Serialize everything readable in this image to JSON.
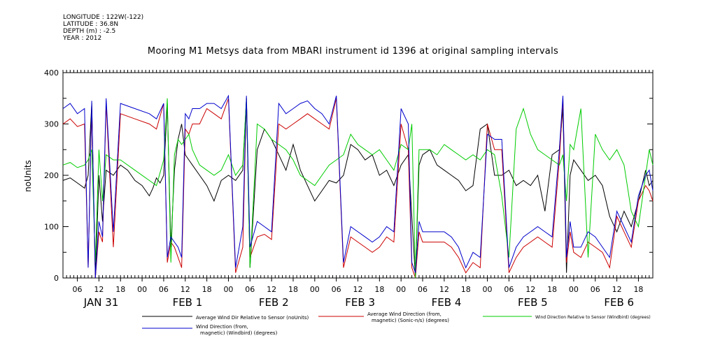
{
  "header": {
    "longitude": "LONGITUDE : 122W(-122)",
    "latitude": "LATITUDE : 36.8N",
    "depth": "DEPTH (m) : -2.5",
    "year": "YEAR : 2012"
  },
  "chart_data": {
    "type": "line",
    "title": "Mooring M1 Metsys data from MBARI instrument id 1396 at original sampling intervals",
    "ylabel": "noUnits",
    "xlabel": "",
    "ylim": [
      0,
      400
    ],
    "xlim": [
      2,
      166
    ],
    "x_unit": "hours since 2012-01-31 00:00",
    "y_ticks": [
      0,
      100,
      200,
      300,
      400
    ],
    "y_tick_labels": [
      "0",
      "100",
      "200",
      "300",
      "400"
    ],
    "x_ticks": [
      6,
      12,
      18,
      24,
      30,
      36,
      42,
      48,
      54,
      60,
      66,
      72,
      78,
      84,
      90,
      96,
      102,
      108,
      114,
      120,
      126,
      132,
      138,
      144,
      150,
      156,
      162
    ],
    "x_tick_labels": [
      "06",
      "12",
      "18",
      "00",
      "06",
      "12",
      "18",
      "00",
      "06",
      "12",
      "18",
      "00",
      "06",
      "12",
      "18",
      "00",
      "06",
      "12",
      "18",
      "00",
      "06",
      "12",
      "18",
      "00",
      "06",
      "12",
      "18"
    ],
    "day_labels": [
      {
        "x": 6,
        "label": "JAN 31"
      },
      {
        "x": 30,
        "label": "FEB  1"
      },
      {
        "x": 54,
        "label": "FEB  2"
      },
      {
        "x": 78,
        "label": "FEB  3"
      },
      {
        "x": 102,
        "label": "FEB  4"
      },
      {
        "x": 126,
        "label": "FEB  5"
      },
      {
        "x": 150,
        "label": "FEB  6"
      }
    ],
    "grid": false,
    "legend_position": "bottom",
    "series": [
      {
        "name": "Average Wind Dir Relative to Sensor (noUnits)",
        "color": "#000000",
        "x": [
          2,
          4,
          6,
          8,
          9,
          10,
          11,
          12,
          13,
          14,
          16,
          18,
          20,
          22,
          24,
          26,
          27,
          28,
          29,
          30,
          31,
          32,
          33,
          34,
          35,
          36,
          37,
          38,
          40,
          42,
          44,
          46,
          48,
          50,
          52,
          53,
          54,
          56,
          58,
          60,
          62,
          64,
          66,
          68,
          70,
          72,
          74,
          76,
          78,
          80,
          82,
          84,
          86,
          88,
          90,
          92,
          94,
          96,
          98,
          99,
          100,
          101,
          102,
          104,
          106,
          108,
          110,
          112,
          114,
          116,
          118,
          120,
          122,
          124,
          126,
          128,
          130,
          132,
          134,
          136,
          138,
          140,
          141,
          142,
          143,
          144,
          146,
          148,
          150,
          152,
          154,
          156,
          158,
          160,
          162,
          164,
          165,
          166
        ],
        "y": [
          190,
          195,
          185,
          175,
          200,
          340,
          0,
          200,
          110,
          210,
          200,
          220,
          210,
          190,
          180,
          160,
          175,
          195,
          185,
          200,
          340,
          60,
          210,
          270,
          300,
          240,
          230,
          220,
          200,
          180,
          150,
          190,
          200,
          190,
          210,
          350,
          20,
          250,
          290,
          270,
          240,
          210,
          260,
          210,
          180,
          150,
          170,
          190,
          185,
          200,
          260,
          250,
          230,
          240,
          200,
          210,
          180,
          220,
          240,
          120,
          0,
          220,
          240,
          250,
          220,
          210,
          200,
          190,
          170,
          180,
          290,
          300,
          200,
          200,
          210,
          180,
          190,
          180,
          200,
          130,
          240,
          250,
          330,
          10,
          200,
          230,
          210,
          190,
          200,
          180,
          120,
          90,
          130,
          100,
          150,
          210,
          180,
          190
        ]
      },
      {
        "name": "Average Wind Direction (from, magnetic) (Sonic-n/s) (degrees)",
        "color": "#cc0000",
        "x": [
          2,
          4,
          6,
          8,
          9,
          10,
          11,
          12,
          13,
          14,
          16,
          18,
          22,
          26,
          28,
          30,
          31,
          32,
          33,
          34,
          35,
          36,
          37,
          38,
          40,
          42,
          44,
          46,
          48,
          50,
          52,
          53,
          54,
          56,
          58,
          60,
          62,
          64,
          66,
          68,
          70,
          72,
          74,
          76,
          78,
          80,
          82,
          84,
          86,
          88,
          90,
          92,
          94,
          96,
          98,
          99,
          100,
          101,
          102,
          104,
          106,
          108,
          110,
          112,
          114,
          116,
          118,
          120,
          122,
          124,
          126,
          128,
          130,
          132,
          134,
          136,
          138,
          140,
          141,
          142,
          143,
          144,
          146,
          148,
          150,
          152,
          154,
          156,
          158,
          160,
          162,
          164,
          165,
          166
        ],
        "y": [
          300,
          310,
          295,
          300,
          20,
          330,
          0,
          90,
          70,
          340,
          60,
          320,
          310,
          300,
          290,
          340,
          30,
          70,
          60,
          40,
          20,
          290,
          280,
          300,
          300,
          330,
          320,
          310,
          350,
          10,
          60,
          350,
          40,
          80,
          85,
          75,
          300,
          290,
          300,
          310,
          320,
          310,
          300,
          290,
          350,
          20,
          80,
          70,
          60,
          50,
          60,
          80,
          70,
          300,
          250,
          20,
          0,
          90,
          70,
          70,
          70,
          70,
          60,
          40,
          10,
          30,
          20,
          300,
          250,
          250,
          10,
          40,
          60,
          70,
          80,
          70,
          60,
          230,
          350,
          30,
          90,
          50,
          40,
          70,
          60,
          50,
          20,
          120,
          90,
          60,
          150,
          180,
          170,
          150
        ]
      },
      {
        "name": "Wind Direction Relative to Sensor (Windbird) (degrees)",
        "color": "#00cc00",
        "x": [
          2,
          4,
          6,
          8,
          9,
          10,
          11,
          12,
          13,
          14,
          16,
          18,
          22,
          26,
          28,
          30,
          31,
          32,
          33,
          34,
          35,
          36,
          37,
          38,
          40,
          42,
          44,
          46,
          48,
          50,
          52,
          53,
          54,
          56,
          58,
          60,
          62,
          64,
          66,
          68,
          70,
          72,
          74,
          76,
          78,
          80,
          82,
          84,
          86,
          88,
          90,
          92,
          94,
          96,
          98,
          99,
          100,
          101,
          102,
          104,
          106,
          108,
          110,
          112,
          114,
          116,
          118,
          120,
          122,
          124,
          126,
          128,
          130,
          132,
          134,
          136,
          138,
          140,
          141,
          142,
          143,
          144,
          146,
          148,
          150,
          152,
          154,
          156,
          158,
          160,
          162,
          164,
          165,
          166
        ],
        "y": [
          220,
          225,
          215,
          220,
          230,
          250,
          30,
          250,
          150,
          240,
          230,
          230,
          210,
          190,
          180,
          230,
          350,
          30,
          240,
          270,
          260,
          270,
          280,
          250,
          220,
          210,
          200,
          210,
          240,
          200,
          220,
          350,
          20,
          300,
          290,
          270,
          260,
          250,
          230,
          200,
          190,
          180,
          200,
          220,
          230,
          240,
          280,
          260,
          250,
          240,
          250,
          230,
          210,
          260,
          250,
          300,
          0,
          250,
          250,
          250,
          240,
          260,
          250,
          240,
          230,
          240,
          230,
          250,
          240,
          160,
          40,
          290,
          330,
          280,
          250,
          240,
          230,
          220,
          240,
          150,
          260,
          250,
          330,
          40,
          280,
          250,
          230,
          250,
          220,
          130,
          100,
          200,
          250,
          220
        ]
      },
      {
        "name": "Wind Direction (from, magnetic) (Windbird) (degrees)",
        "color": "#0000cc",
        "x": [
          2,
          4,
          6,
          8,
          9,
          10,
          11,
          12,
          13,
          14,
          16,
          18,
          22,
          26,
          28,
          30,
          31,
          32,
          33,
          34,
          35,
          36,
          37,
          38,
          40,
          42,
          44,
          46,
          48,
          50,
          52,
          53,
          54,
          56,
          58,
          60,
          62,
          64,
          66,
          68,
          70,
          72,
          74,
          76,
          78,
          80,
          82,
          84,
          86,
          88,
          90,
          92,
          94,
          96,
          98,
          99,
          100,
          101,
          102,
          104,
          106,
          108,
          110,
          112,
          114,
          116,
          118,
          120,
          122,
          124,
          126,
          128,
          130,
          132,
          134,
          136,
          138,
          140,
          141,
          142,
          143,
          144,
          146,
          148,
          150,
          152,
          154,
          156,
          158,
          160,
          162,
          164,
          165,
          166
        ],
        "y": [
          330,
          340,
          320,
          330,
          20,
          345,
          0,
          110,
          80,
          350,
          90,
          340,
          330,
          320,
          310,
          340,
          40,
          80,
          70,
          60,
          40,
          320,
          310,
          330,
          330,
          340,
          340,
          330,
          355,
          20,
          100,
          355,
          60,
          110,
          100,
          90,
          340,
          320,
          330,
          340,
          345,
          330,
          320,
          300,
          355,
          30,
          100,
          90,
          80,
          70,
          80,
          100,
          90,
          330,
          300,
          30,
          10,
          110,
          90,
          90,
          90,
          90,
          80,
          60,
          20,
          50,
          40,
          280,
          270,
          270,
          20,
          60,
          80,
          90,
          100,
          90,
          80,
          250,
          355,
          40,
          110,
          60,
          60,
          90,
          80,
          60,
          40,
          130,
          100,
          70,
          160,
          200,
          210,
          170
        ]
      }
    ]
  },
  "legend": {
    "items": [
      {
        "label_line1": "Average Wind Dir Relative to Sensor (noUnits)",
        "label_line2": "",
        "color": "#000000"
      },
      {
        "label_line1": "Average Wind Direction (from,",
        "label_line2": "magnetic) (Sonic-n/s) (degrees)",
        "color": "#cc0000"
      },
      {
        "label_line1": "Wind Direction Relative to Sensor (Windbird) (degrees)",
        "label_line2": "",
        "color": "#00cc00"
      },
      {
        "label_line1": "Wind Direction (from,",
        "label_line2": "magnetic) (Windbird) (degrees)",
        "color": "#0000cc"
      }
    ]
  }
}
